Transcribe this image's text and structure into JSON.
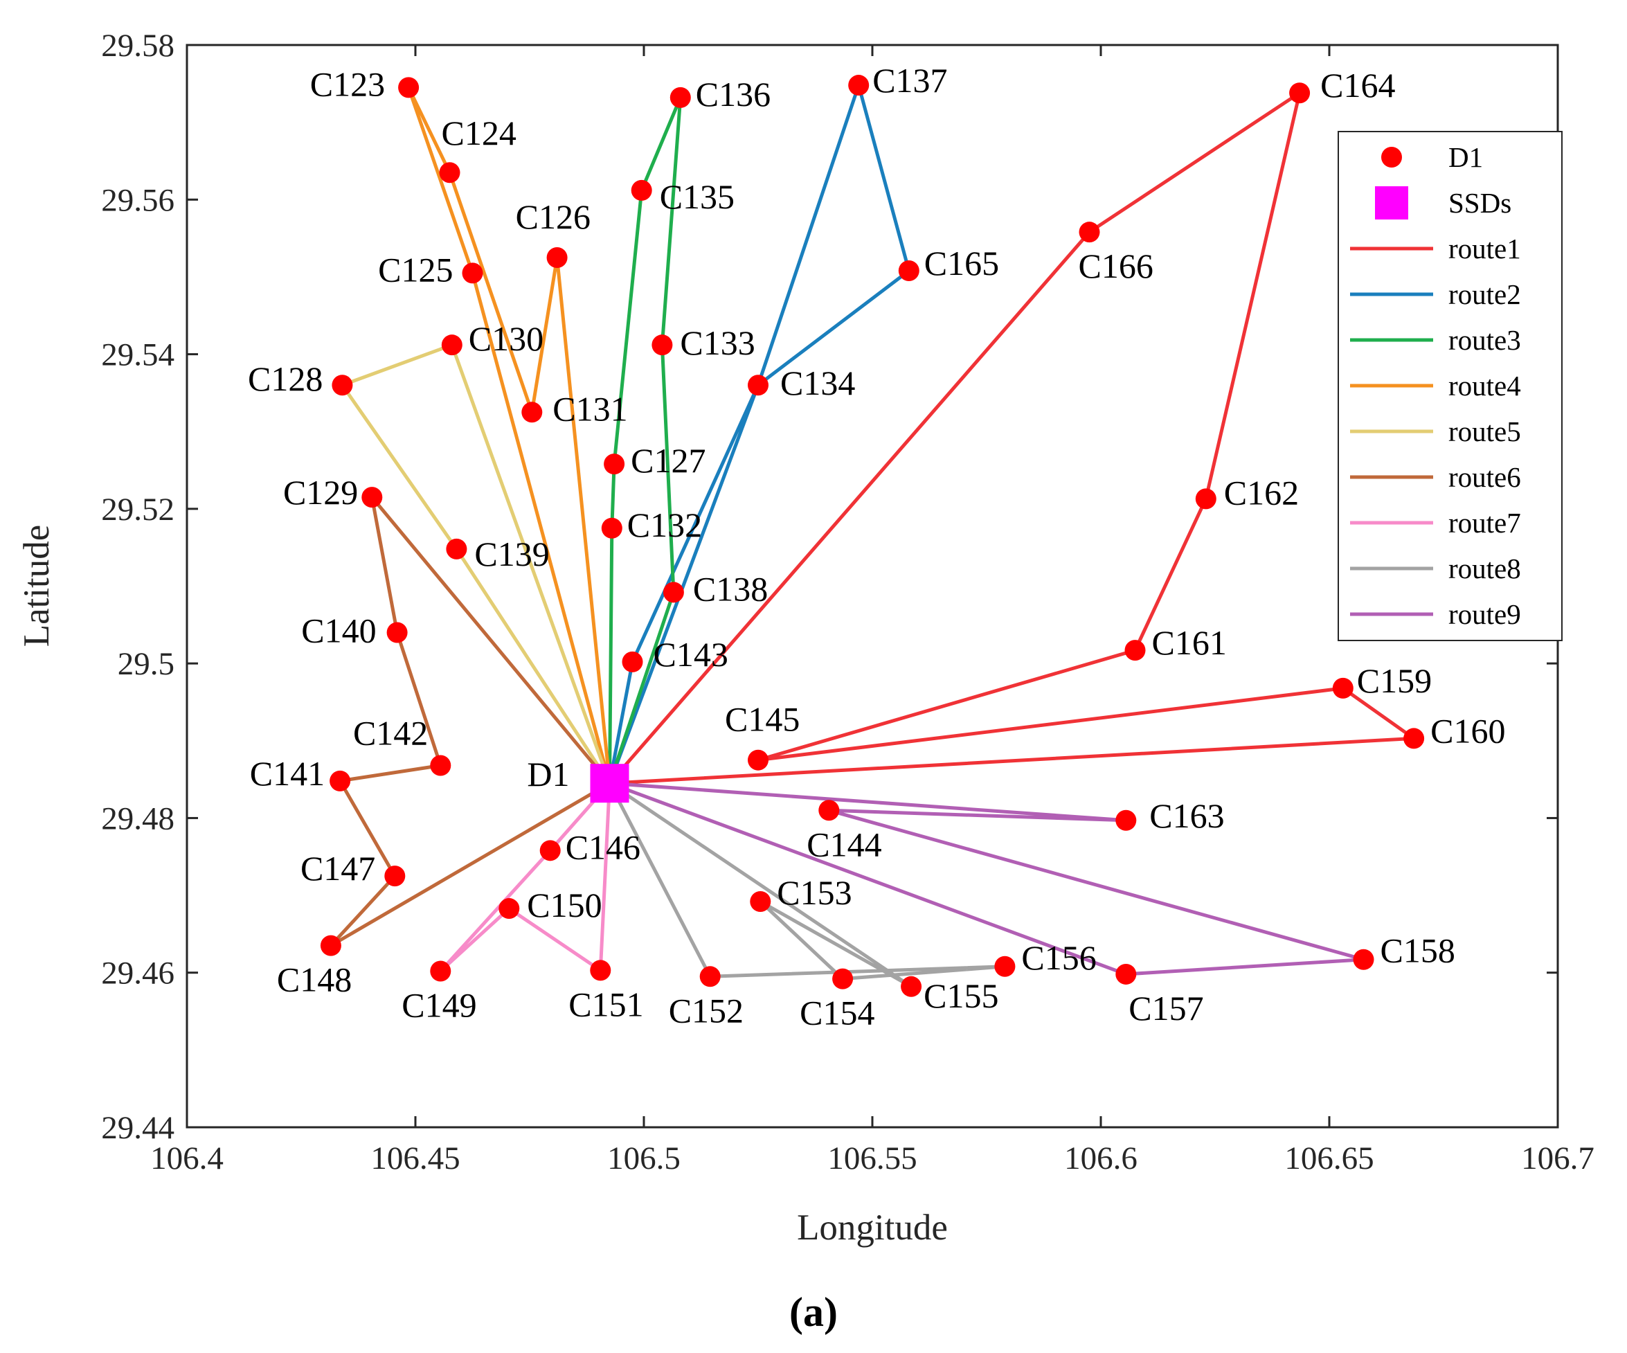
{
  "chart_data": {
    "type": "scatter",
    "xlabel": "Longitude",
    "ylabel": "Latitude",
    "caption": "(a)",
    "xlim": [
      106.4,
      106.7
    ],
    "ylim": [
      29.44,
      29.58
    ],
    "xticks": [
      106.4,
      106.45,
      106.5,
      106.55,
      106.6,
      106.65,
      106.7
    ],
    "yticks": [
      29.44,
      29.46,
      29.48,
      29.5,
      29.52,
      29.54,
      29.56,
      29.58
    ],
    "xtick_labels": [
      "106.4",
      "106.45",
      "106.5",
      "106.55",
      "106.6",
      "106.65",
      "106.7"
    ],
    "ytick_labels": [
      "29.44",
      "29.46",
      "29.48",
      "29.5",
      "29.52",
      "29.54",
      "29.56",
      "29.58"
    ],
    "legend_placement": "top-right",
    "grid": false,
    "depot": {
      "name": "D1",
      "x": 106.4925,
      "y": 29.4845
    },
    "customers": [
      {
        "name": "C123",
        "x": 106.4485,
        "y": 29.5745
      },
      {
        "name": "C124",
        "x": 106.4575,
        "y": 29.5635
      },
      {
        "name": "C125",
        "x": 106.4625,
        "y": 29.5505
      },
      {
        "name": "C126",
        "x": 106.481,
        "y": 29.5525
      },
      {
        "name": "C127",
        "x": 106.4935,
        "y": 29.5258
      },
      {
        "name": "C128",
        "x": 106.434,
        "y": 29.536
      },
      {
        "name": "C129",
        "x": 106.4405,
        "y": 29.5215
      },
      {
        "name": "C130",
        "x": 106.458,
        "y": 29.5412
      },
      {
        "name": "C131",
        "x": 106.4755,
        "y": 29.5325
      },
      {
        "name": "C132",
        "x": 106.493,
        "y": 29.5175
      },
      {
        "name": "C133",
        "x": 106.504,
        "y": 29.5412
      },
      {
        "name": "C134",
        "x": 106.525,
        "y": 29.536
      },
      {
        "name": "C135",
        "x": 106.4995,
        "y": 29.5612
      },
      {
        "name": "C136",
        "x": 106.508,
        "y": 29.5732
      },
      {
        "name": "C137",
        "x": 106.547,
        "y": 29.5748
      },
      {
        "name": "C138",
        "x": 106.5065,
        "y": 29.5092
      },
      {
        "name": "C139",
        "x": 106.459,
        "y": 29.5148
      },
      {
        "name": "C140",
        "x": 106.446,
        "y": 29.504
      },
      {
        "name": "C141",
        "x": 106.4335,
        "y": 29.4848
      },
      {
        "name": "C142",
        "x": 106.4555,
        "y": 29.4868
      },
      {
        "name": "C143",
        "x": 106.4975,
        "y": 29.5002
      },
      {
        "name": "C144",
        "x": 106.5405,
        "y": 29.481
      },
      {
        "name": "C145",
        "x": 106.525,
        "y": 29.4875
      },
      {
        "name": "C146",
        "x": 106.4795,
        "y": 29.4758
      },
      {
        "name": "C147",
        "x": 106.4455,
        "y": 29.4725
      },
      {
        "name": "C148",
        "x": 106.4315,
        "y": 29.4635
      },
      {
        "name": "C149",
        "x": 106.4555,
        "y": 29.4602
      },
      {
        "name": "C150",
        "x": 106.4705,
        "y": 29.4683
      },
      {
        "name": "C151",
        "x": 106.4905,
        "y": 29.4603
      },
      {
        "name": "C152",
        "x": 106.5145,
        "y": 29.4595
      },
      {
        "name": "C153",
        "x": 106.5255,
        "y": 29.4692
      },
      {
        "name": "C154",
        "x": 106.5435,
        "y": 29.4592
      },
      {
        "name": "C155",
        "x": 106.5585,
        "y": 29.4582
      },
      {
        "name": "C156",
        "x": 106.579,
        "y": 29.4608
      },
      {
        "name": "C157",
        "x": 106.6055,
        "y": 29.4598
      },
      {
        "name": "C158",
        "x": 106.6575,
        "y": 29.4617
      },
      {
        "name": "C159",
        "x": 106.653,
        "y": 29.4968
      },
      {
        "name": "C160",
        "x": 106.6685,
        "y": 29.4903
      },
      {
        "name": "C161",
        "x": 106.6075,
        "y": 29.5017
      },
      {
        "name": "C162",
        "x": 106.623,
        "y": 29.5213
      },
      {
        "name": "C163",
        "x": 106.6055,
        "y": 29.4797
      },
      {
        "name": "C164",
        "x": 106.6435,
        "y": 29.5738
      },
      {
        "name": "C165",
        "x": 106.558,
        "y": 29.5508
      },
      {
        "name": "C166",
        "x": 106.5975,
        "y": 29.5558
      }
    ],
    "routes": [
      {
        "name": "route1",
        "color": "#f03236",
        "path": [
          "D1",
          "C166",
          "C164",
          "C162",
          "C161",
          "C145",
          "C159",
          "C160",
          "D1"
        ]
      },
      {
        "name": "route2",
        "color": "#1a7fbd",
        "path": [
          "D1",
          "C134",
          "C165",
          "C137",
          "C134",
          "C143",
          "D1"
        ]
      },
      {
        "name": "route3",
        "color": "#1fae4d",
        "path": [
          "D1",
          "C132",
          "C127",
          "C135",
          "C136",
          "C133",
          "C138",
          "D1"
        ]
      },
      {
        "name": "route4",
        "color": "#f59120",
        "path": [
          "D1",
          "C125",
          "C123",
          "C124",
          "C131",
          "C126",
          "D1"
        ]
      },
      {
        "name": "route5",
        "color": "#e3cd73",
        "path": [
          "D1",
          "C130",
          "C128",
          "C139",
          "D1"
        ]
      },
      {
        "name": "route6",
        "color": "#c0693a",
        "path": [
          "D1",
          "C129",
          "C140",
          "C142",
          "C141",
          "C147",
          "C148",
          "D1"
        ]
      },
      {
        "name": "route7",
        "color": "#f78bc9",
        "path": [
          "D1",
          "C146",
          "C149",
          "C150",
          "C151",
          "D1"
        ]
      },
      {
        "name": "route8",
        "color": "#a3a3a3",
        "path": [
          "D1",
          "C152",
          "C156",
          "C154",
          "C153",
          "C155",
          "D1"
        ]
      },
      {
        "name": "route9",
        "color": "#b15fb4",
        "path": [
          "D1",
          "C157",
          "C158",
          "C144",
          "C163",
          "D1"
        ]
      }
    ],
    "legend": [
      {
        "label": "D1",
        "kind": "marker",
        "color": "#ff0000"
      },
      {
        "label": "SSDs",
        "kind": "square",
        "color": "#ff00ff"
      },
      {
        "label": "route1",
        "kind": "line",
        "color": "#f03236"
      },
      {
        "label": "route2",
        "kind": "line",
        "color": "#1a7fbd"
      },
      {
        "label": "route3",
        "kind": "line",
        "color": "#1fae4d"
      },
      {
        "label": "route4",
        "kind": "line",
        "color": "#f59120"
      },
      {
        "label": "route5",
        "kind": "line",
        "color": "#e3cd73"
      },
      {
        "label": "route6",
        "kind": "line",
        "color": "#c0693a"
      },
      {
        "label": "route7",
        "kind": "line",
        "color": "#f78bc9"
      },
      {
        "label": "route8",
        "kind": "line",
        "color": "#a3a3a3"
      },
      {
        "label": "route9",
        "kind": "line",
        "color": "#b15fb4"
      }
    ]
  }
}
